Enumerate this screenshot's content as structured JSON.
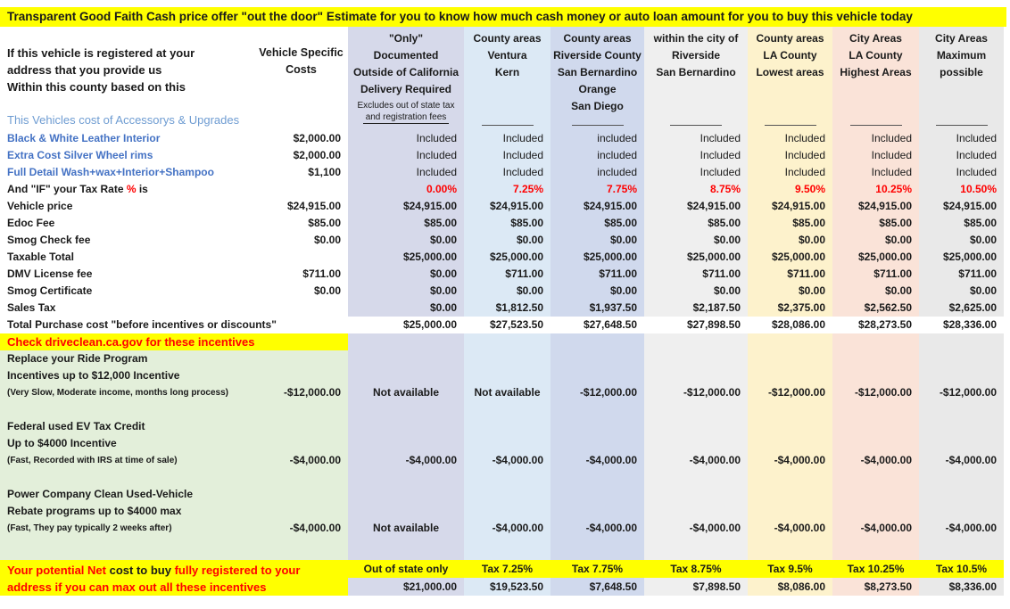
{
  "colors": {
    "highlight": "#ffff00",
    "red": "#ff0000",
    "blue_label": "#4472c4",
    "blue_heading": "#6e9cd2",
    "col_out_of_state": "#d6d9ea",
    "col_ventura_kern": "#dce9f5",
    "col_riverside_county": "#d0d9ed",
    "col_city_riverside": "#efefef",
    "col_la_lowest": "#fdf2cc",
    "col_la_highest": "#fae3d8",
    "col_maximum": "#e9e9e9",
    "incentive_green": "#e3efda"
  },
  "title": {
    "text": "Transparent Good Faith Cash price offer \"out the door\" Estimate for you to know how much cash money or auto loan amount for you to buy this vehicle today"
  },
  "header": {
    "label_lines": [
      "If this vehicle is registered at your",
      "address that you provide us",
      "Within this county based on this"
    ],
    "accessories_heading": "This Vehicles cost of Accessorys & Upgrades",
    "vsc_lines": [
      "Vehicle Specific",
      "Costs"
    ],
    "columns": [
      {
        "id": "out-of-state",
        "lines": [
          "\"Only\"",
          "Documented",
          "Outside of California",
          "Delivery Required"
        ],
        "note_lines": [
          "Excludes out of state tax",
          "and registration fees"
        ]
      },
      {
        "id": "ventura-kern",
        "lines": [
          "County areas",
          "Ventura",
          "Kern"
        ]
      },
      {
        "id": "riverside-county",
        "lines": [
          "County areas",
          "Riverside County",
          "San Bernardino",
          "Orange",
          "San Diego"
        ]
      },
      {
        "id": "city-riverside",
        "lines": [
          "within the city of",
          "Riverside",
          "San Bernardino"
        ]
      },
      {
        "id": "la-lowest",
        "lines": [
          "County areas",
          "LA County",
          "Lowest areas"
        ]
      },
      {
        "id": "la-highest",
        "lines": [
          "City Areas",
          "LA County",
          "Highest Areas"
        ]
      },
      {
        "id": "maximum",
        "lines": [
          "City Areas",
          "Maximum",
          "possible"
        ]
      }
    ]
  },
  "body_rows": [
    {
      "label": "Black & White Leather Interior",
      "label_class": "blue",
      "vsc": "$2,000.00",
      "cell_class": "reg",
      "cells": [
        "Included",
        "Included",
        "included",
        "Included",
        "Included",
        "Included",
        "Included"
      ]
    },
    {
      "label": "Extra Cost Silver Wheel rims",
      "label_class": "blue",
      "vsc": "$2,000.00",
      "cell_class": "reg",
      "cells": [
        "Included",
        "Included",
        "included",
        "Included",
        "Included",
        "Included",
        "Included"
      ]
    },
    {
      "label": "Full Detail Wash+wax+Interior+Shampoo",
      "label_class": "blue",
      "vsc": "$1,100",
      "cell_class": "reg",
      "cells": [
        "Included",
        "Included",
        "included",
        "Included",
        "Included",
        "Included",
        "Included"
      ]
    },
    {
      "label_parts": [
        {
          "t": "And \"IF\" your Tax Rate "
        },
        {
          "t": "%",
          "c": "red"
        },
        {
          "t": " is"
        }
      ],
      "vsc": "",
      "cell_class": "red",
      "cells": [
        "0.00%",
        "7.25%",
        "7.75%",
        "8.75%",
        "9.50%",
        "10.25%",
        "10.50%"
      ]
    },
    {
      "label": "Vehicle price",
      "vsc": "$24,915.00",
      "cells": [
        "$24,915.00",
        "$24,915.00",
        "$24,915.00",
        "$24,915.00",
        "$24,915.00",
        "$24,915.00",
        "$24,915.00"
      ]
    },
    {
      "label": "Edoc Fee",
      "vsc": "$85.00",
      "cells": [
        "$85.00",
        "$85.00",
        "$85.00",
        "$85.00",
        "$85.00",
        "$85.00",
        "$85.00"
      ]
    },
    {
      "label": "Smog Check fee",
      "vsc": "$0.00",
      "cells": [
        "$0.00",
        "$0.00",
        "$0.00",
        "$0.00",
        "$0.00",
        "$0.00",
        "$0.00"
      ]
    },
    {
      "label": "Taxable Total",
      "vsc": "",
      "cells": [
        "$25,000.00",
        "$25,000.00",
        "$25,000.00",
        "$25,000.00",
        "$25,000.00",
        "$25,000.00",
        "$25,000.00"
      ]
    },
    {
      "label": "DMV License fee",
      "vsc": "$711.00",
      "cells": [
        "$0.00",
        "$711.00",
        "$711.00",
        "$711.00",
        "$711.00",
        "$711.00",
        "$711.00"
      ]
    },
    {
      "label": "Smog Certificate",
      "vsc": "$0.00",
      "cells": [
        "$0.00",
        "$0.00",
        "$0.00",
        "$0.00",
        "$0.00",
        "$0.00",
        "$0.00"
      ]
    },
    {
      "label": "Sales Tax",
      "vsc": "",
      "cells": [
        "$0.00",
        "$1,812.50",
        "$1,937.50",
        "$2,187.50",
        "$2,375.00",
        "$2,562.50",
        "$2,625.00"
      ]
    },
    {
      "label": "Total Purchase cost \"before incentives or discounts\"",
      "vsc": "",
      "no_fill": true,
      "cells": [
        "$25,000.00",
        "$27,523.50",
        "$27,648.50",
        "$27,898.50",
        "$28,086.00",
        "$28,273.50",
        "$28,336.00"
      ]
    }
  ],
  "check_banner": {
    "prefix": "Check  ",
    "link": "driveclean.ca.gov",
    "suffix": "  for these incentives"
  },
  "incentive_groups": [
    {
      "heading_lines": [
        "Replace your Ride Program",
        "Incentives up to $12,000 Incentive"
      ],
      "note": "(Very Slow, Moderate income, months long process)",
      "vsc": "-$12,000.00",
      "cells": [
        "Not available",
        "Not available",
        "-$12,000.00",
        "-$12,000.00",
        "-$12,000.00",
        "-$12,000.00",
        "-$12,000.00"
      ]
    },
    {
      "heading_lines": [
        "Federal used EV Tax Credit",
        "Up to $4000 Incentive"
      ],
      "note": "(Fast, Recorded with IRS at time of sale)",
      "vsc": "-$4,000.00",
      "cells": [
        "-$4,000.00",
        "-$4,000.00",
        "-$4,000.00",
        "-$4,000.00",
        "-$4,000.00",
        "-$4,000.00",
        "-$4,000.00"
      ]
    },
    {
      "heading_lines": [
        "Power Company Clean Used-Vehicle",
        "Rebate programs up to $4000 max"
      ],
      "note": "(Fast, They pay typically 2 weeks after)",
      "vsc": "-$4,000.00",
      "cells": [
        "Not available",
        "-$4,000.00",
        "-$4,000.00",
        "-$4,000.00",
        "-$4,000.00",
        "-$4,000.00",
        "-$4,000.00"
      ]
    }
  ],
  "footer": {
    "left_line1_parts": [
      {
        "t": "Your potential Net ",
        "c": "red"
      },
      {
        "t": "cost to buy "
      },
      {
        "t": "fully registered to your",
        "c": "red"
      }
    ],
    "left_line2_parts": [
      {
        "t": "address if you can max out all these incentives",
        "c": "red"
      }
    ],
    "col_labels": [
      "Out of state only",
      "Tax 7.25%",
      "Tax 7.75%",
      "Tax 8.75%",
      "Tax 9.5%",
      "Tax 10.25%",
      "Tax 10.5%"
    ],
    "values": [
      "$21,000.00",
      "$19,523.50",
      "$7,648.50",
      "$7,898.50",
      "$8,086.00",
      "$8,273.50",
      "$8,336.00"
    ]
  }
}
